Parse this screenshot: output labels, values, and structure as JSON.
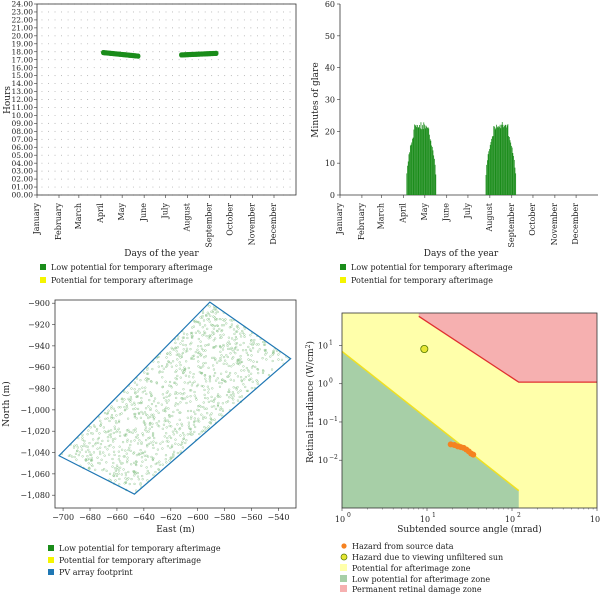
{
  "chart_data": [
    {
      "type": "scatter",
      "xlabel": "Days of the year",
      "ylabel": "Hours",
      "ylim": [
        0,
        24
      ],
      "yticks": [
        "00.00",
        "01.00",
        "02.00",
        "03.00",
        "04.00",
        "05.00",
        "06.00",
        "07.00",
        "08.00",
        "09.00",
        "10.00",
        "11.00",
        "12.00",
        "13.00",
        "14.00",
        "15.00",
        "16.00",
        "17.00",
        "18.00",
        "19.00",
        "20.00",
        "21.00",
        "22.00",
        "23.00",
        "24.00"
      ],
      "categories": [
        "January",
        "February",
        "March",
        "April",
        "May",
        "June",
        "July",
        "August",
        "September",
        "October",
        "November",
        "December"
      ],
      "series": [
        {
          "name": "Low potential for temporary afterimage",
          "color": "#1a8c1a",
          "segments": [
            {
              "day_start": 94,
              "day_end": 144,
              "hour_start": 17.9,
              "hour_end": 17.45
            },
            {
              "day_start": 204,
              "day_end": 254,
              "hour_start": 17.6,
              "hour_end": 17.8
            }
          ]
        },
        {
          "name": "Potential for temporary afterimage",
          "color": "#f5f500",
          "segments": []
        }
      ]
    },
    {
      "type": "bar",
      "xlabel": "Days of the year",
      "ylabel": "Minutes of glare",
      "ylim": [
        0,
        60
      ],
      "yticks": [
        0,
        10,
        20,
        30,
        40,
        50,
        60
      ],
      "categories": [
        "January",
        "February",
        "March",
        "April",
        "May",
        "June",
        "July",
        "August",
        "September",
        "October",
        "November",
        "December"
      ],
      "series": [
        {
          "name": "Low potential for temporary afterimage",
          "color": "#1a8c1a",
          "windows": [
            {
              "day_start": 94,
              "day_end": 137,
              "peak": 23
            },
            {
              "day_start": 206,
              "day_end": 250,
              "peak": 23
            }
          ]
        },
        {
          "name": "Potential for temporary afterimage",
          "color": "#f5f500",
          "windows": []
        }
      ]
    },
    {
      "type": "scatter",
      "xlabel": "East (m)",
      "ylabel": "North (m)",
      "xlim": [
        -706,
        -527
      ],
      "ylim": [
        -1092,
        -897
      ],
      "xticks": [
        -700,
        -680,
        -660,
        -640,
        -620,
        -600,
        -580,
        -560,
        -540
      ],
      "yticks": [
        -900,
        -920,
        -940,
        -960,
        -980,
        -1000,
        -1020,
        -1040,
        -1060,
        -1080
      ],
      "xtick_labels": [
        "−700",
        "−680",
        "−660",
        "−640",
        "−620",
        "−600",
        "−580",
        "−560",
        "−540"
      ],
      "ytick_labels": [
        "−900",
        "−920",
        "−940",
        "−960",
        "−980",
        "−1,000",
        "−1,020",
        "−1,040",
        "−1,060",
        "−1,080"
      ],
      "footprint": [
        [
          -591,
          -899
        ],
        [
          -531,
          -952
        ],
        [
          -647,
          -1079
        ],
        [
          -703,
          -1043
        ]
      ],
      "series": [
        {
          "name": "Low potential for temporary afterimage",
          "color": "#1a8c1a"
        },
        {
          "name": "Potential for temporary afterimage",
          "color": "#f5f500"
        },
        {
          "name": "PV array footprint",
          "color": "#1f77b4"
        }
      ]
    },
    {
      "type": "scatter",
      "xlabel": "Subtended source angle (mrad)",
      "ylabel_main": "Retinal irradiance (W/cm",
      "ylabel_sup": "2",
      "ylabel_end": ")",
      "xscale": "log",
      "yscale": "log",
      "xlim_exp": [
        0,
        3
      ],
      "ylim_exp": [
        -3.25,
        1.85
      ],
      "xticks": [
        {
          "base": "10",
          "exp": "0"
        },
        {
          "base": "10",
          "exp": "1"
        },
        {
          "base": "10",
          "exp": "2"
        },
        {
          "base": "10",
          "exp": "3"
        }
      ],
      "yticks": [
        {
          "base": "10",
          "exp": "1",
          "e": 1
        },
        {
          "base": "10",
          "exp": "0",
          "e": 0
        },
        {
          "base": "10",
          "exp": "−1",
          "e": -1
        },
        {
          "base": "10",
          "exp": "−2",
          "e": -2
        }
      ],
      "permanent_damage_boundary": [
        [
          8,
          58
        ],
        [
          120,
          1.1
        ],
        [
          1000,
          1.1
        ]
      ],
      "afterimage_boundary": [
        [
          1,
          7
        ],
        [
          120,
          0.0016
        ]
      ],
      "source_data": [
        [
          19,
          0.026
        ],
        [
          21,
          0.025
        ],
        [
          23,
          0.023
        ],
        [
          25,
          0.022
        ],
        [
          27,
          0.021
        ],
        [
          29,
          0.019
        ],
        [
          31,
          0.017
        ],
        [
          33,
          0.015
        ],
        [
          35,
          0.014
        ]
      ],
      "unfiltered_sun": [
        9.3,
        8.1
      ],
      "legend": [
        {
          "name": "Hazard from source data",
          "color": "#f58220"
        },
        {
          "name": "Hazard due to viewing unfiltered sun",
          "color": "#e6e633"
        },
        {
          "name": "Potential for afterimage zone",
          "color": "#ffffaa"
        },
        {
          "name": "Low potential for afterimage zone",
          "color": "#a7cfa7"
        },
        {
          "name": "Permanent retinal damage zone",
          "color": "#f6b0b0"
        }
      ]
    }
  ]
}
